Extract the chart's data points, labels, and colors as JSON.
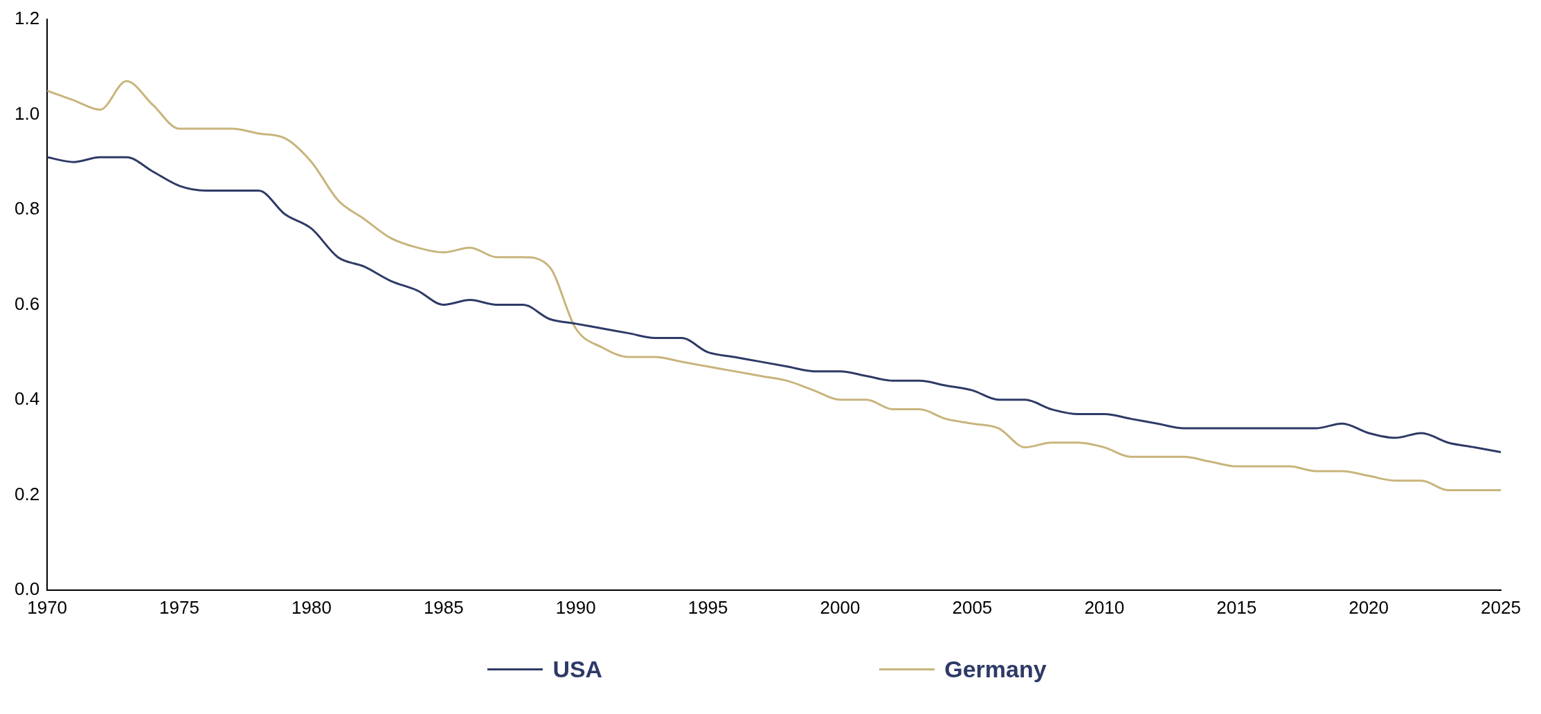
{
  "chart_data": {
    "type": "line",
    "x": [
      1970,
      1971,
      1972,
      1973,
      1974,
      1975,
      1976,
      1977,
      1978,
      1979,
      1980,
      1981,
      1982,
      1983,
      1984,
      1985,
      1986,
      1987,
      1988,
      1989,
      1990,
      1991,
      1992,
      1993,
      1994,
      1995,
      1996,
      1997,
      1998,
      1999,
      2000,
      2001,
      2002,
      2003,
      2004,
      2005,
      2006,
      2007,
      2008,
      2009,
      2010,
      2011,
      2012,
      2013,
      2014,
      2015,
      2016,
      2017,
      2018,
      2019,
      2020,
      2021,
      2022,
      2023,
      2024,
      2025
    ],
    "series": [
      {
        "name": "USA",
        "color": "#2e3a66",
        "values": [
          0.91,
          0.9,
          0.91,
          0.91,
          0.88,
          0.85,
          0.84,
          0.84,
          0.84,
          0.79,
          0.76,
          0.7,
          0.68,
          0.65,
          0.63,
          0.6,
          0.61,
          0.6,
          0.6,
          0.57,
          0.56,
          0.55,
          0.54,
          0.53,
          0.53,
          0.5,
          0.49,
          0.48,
          0.47,
          0.46,
          0.46,
          0.45,
          0.44,
          0.44,
          0.43,
          0.42,
          0.4,
          0.4,
          0.38,
          0.37,
          0.37,
          0.36,
          0.35,
          0.34,
          0.34,
          0.34,
          0.34,
          0.34,
          0.34,
          0.35,
          0.33,
          0.32,
          0.33,
          0.31,
          0.3,
          0.29
        ]
      },
      {
        "name": "Germany",
        "color": "#c8b47c",
        "values": [
          1.05,
          1.03,
          1.01,
          1.07,
          1.02,
          0.97,
          0.97,
          0.97,
          0.96,
          0.95,
          0.9,
          0.82,
          0.78,
          0.74,
          0.72,
          0.71,
          0.72,
          0.7,
          0.7,
          0.68,
          0.55,
          0.51,
          0.49,
          0.49,
          0.48,
          0.47,
          0.46,
          0.45,
          0.44,
          0.42,
          0.4,
          0.4,
          0.38,
          0.38,
          0.36,
          0.35,
          0.34,
          0.3,
          0.31,
          0.31,
          0.3,
          0.28,
          0.28,
          0.28,
          0.27,
          0.26,
          0.26,
          0.26,
          0.25,
          0.25,
          0.24,
          0.23,
          0.23,
          0.21,
          0.21,
          0.21
        ]
      }
    ],
    "xlim": [
      1970,
      2025
    ],
    "xticks": [
      1970,
      1975,
      1980,
      1985,
      1990,
      1995,
      2000,
      2005,
      2010,
      2015,
      2020,
      2025
    ],
    "ylim": [
      0,
      1.2
    ],
    "yticks": [
      {
        "value": 0,
        "label": "0.0"
      },
      {
        "value": 0.2,
        "label": "0.2"
      },
      {
        "value": 0.4,
        "label": "0.4"
      },
      {
        "value": 0.6,
        "label": "0.6"
      },
      {
        "value": 0.8,
        "label": "0.8"
      },
      {
        "value": 1.0,
        "label": "1.0"
      },
      {
        "value": 1.2,
        "label": "1.2"
      }
    ],
    "grid": false,
    "legend": "bottom",
    "marker": "none",
    "line_style": "solid"
  }
}
